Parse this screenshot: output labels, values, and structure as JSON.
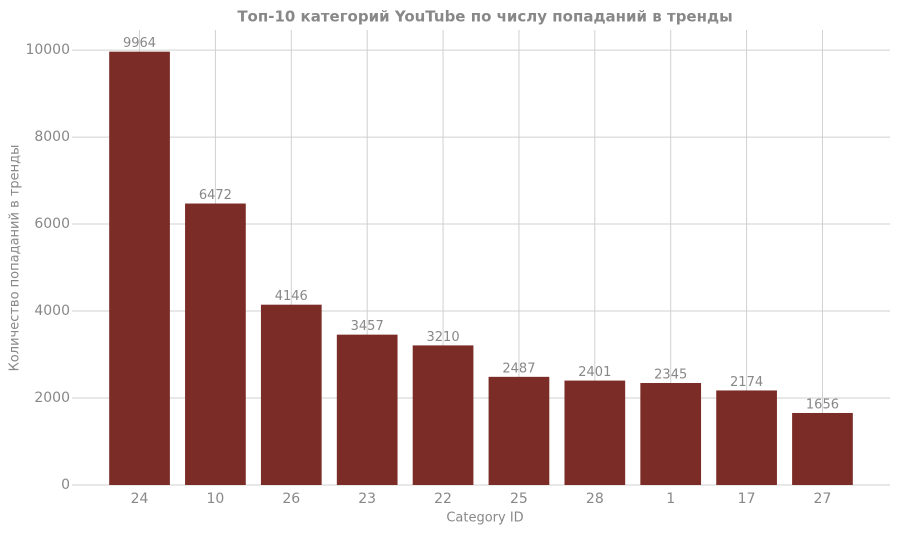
{
  "chart_data": {
    "type": "bar",
    "title": "Топ-10 категорий YouTube по числу попаданий в тренды",
    "x_label": "Category ID",
    "y_label": "Количество попаданий в тренды",
    "categories": [
      "24",
      "10",
      "26",
      "23",
      "22",
      "25",
      "28",
      "1",
      "17",
      "27"
    ],
    "values": [
      9964,
      6472,
      4146,
      3457,
      3210,
      2487,
      2401,
      2345,
      2174,
      1656
    ],
    "color": "#7b2c26",
    "ylim": [
      0,
      10462
    ],
    "yticks": [
      0,
      2000,
      4000,
      6000,
      8000,
      10000
    ],
    "grid": true
  }
}
